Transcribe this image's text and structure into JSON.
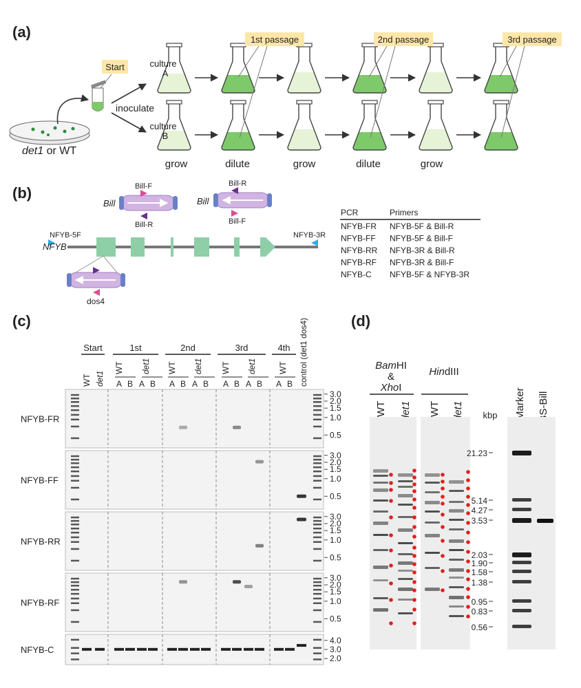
{
  "panels": {
    "a": "(a)",
    "b": "(b)",
    "c": "(c)",
    "d": "(d)"
  },
  "panel_a": {
    "start": "Start",
    "inoculate": "inoculate",
    "source_label_italic": "det1",
    "source_label_rest": " or WT",
    "culture_a": [
      "culture",
      "A"
    ],
    "culture_b": [
      "culture",
      "B"
    ],
    "passages": [
      "1st passage",
      "2nd passage",
      "3rd passage"
    ],
    "steps": [
      "grow",
      "dilute",
      "grow",
      "dilute",
      "grow"
    ]
  },
  "panel_b": {
    "gene": "NFYB",
    "bill": "Bill",
    "dos4": "dos4",
    "bill_left_top": "Bill-F",
    "bill_left_bottom": "Bill-R",
    "bill_right_top": "Bill-R",
    "bill_right_bottom": "Bill-F",
    "primer_5f": "NFYB-5F",
    "primer_3r": "NFYB-3R",
    "table_headers": [
      "PCR",
      "Primers"
    ],
    "table_rows": [
      [
        "NFYB-FR",
        "NFYB-5F & Bill-R"
      ],
      [
        "NFYB-FF",
        "NFYB-5F & Bill-F"
      ],
      [
        "NFYB-RR",
        "NFYB-3R & Bill-R"
      ],
      [
        "NFYB-RF",
        "NFYB-3R & Bill-F"
      ],
      [
        "NFYB-C",
        "NFYB-5F & NFYB-3R"
      ]
    ]
  },
  "panel_c": {
    "groups": [
      "Start",
      "1st",
      "2nd",
      "3rd",
      "4th"
    ],
    "control": "control (det1 dos4)",
    "wt": "WT",
    "det1": "det1",
    "a": "A",
    "b": "B",
    "gels": [
      "NFYB-FR",
      "NFYB-FF",
      "NFYB-RR",
      "NFYB-RF",
      "NFYB-C"
    ],
    "size_labels_main": [
      "3.0",
      "2.0",
      "1.5",
      "1.0",
      "0.5"
    ],
    "size_labels_c": [
      "4.0",
      "3.0",
      "2.0"
    ]
  },
  "panel_d": {
    "enzyme1_a": "Bam",
    "enzyme1_b": "HI",
    "amp": "&",
    "enzyme2_a": "Xho",
    "enzyme2_b": "I",
    "enzyme3_a": "Hin",
    "enzyme3_b": "dIII",
    "wt": "WT",
    "det1": "det1",
    "marker": "Marker",
    "pbs": "pBS-Bill",
    "unit": "kbp",
    "sizes": [
      "21.23",
      "5.14",
      "4.27",
      "3.53",
      "2.03",
      "1.90",
      "1.58",
      "1.38",
      "0.95",
      "0.83",
      "0.56"
    ]
  },
  "colors": {
    "green_full": "#7ec96a",
    "green_light": "#e6f3d6",
    "label_bg": "#fde7a8",
    "gel_bg": "#f3f3f3",
    "exon": "#8ecfa8",
    "bill": "#d2b4e2",
    "pink": "#e04a9a",
    "purple": "#6a2f8f",
    "cyan": "#2ab0e4",
    "red_dot": "#e0201a"
  }
}
